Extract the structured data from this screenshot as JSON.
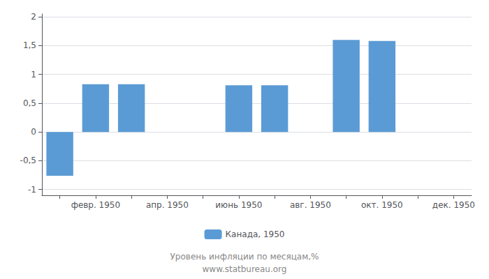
{
  "chart_data": {
    "type": "bar",
    "categories": [
      null,
      "февр. 1950",
      null,
      "апр. 1950",
      null,
      "июнь 1950",
      null,
      "авг. 1950",
      null,
      "окт. 1950",
      null,
      "дек. 1950"
    ],
    "series": [
      {
        "name": "Канада, 1950",
        "color": "#5b9bd5",
        "values": [
          -0.76,
          0.83,
          0.83,
          null,
          null,
          0.81,
          0.81,
          null,
          1.6,
          1.58,
          null,
          null
        ]
      }
    ],
    "ylim": [
      -1.1,
      2.05
    ],
    "yticks": [
      -1,
      {
        "value": -0.5,
        "label": "-0,5"
      },
      0,
      {
        "value": 0.5,
        "label": "0,5"
      },
      1,
      {
        "value": 1.5,
        "label": "1,5"
      },
      2
    ],
    "grid": true,
    "legend": "bottom",
    "annotations": [
      "Уровень инфляции по месяцам,%",
      "www.statbureau.org"
    ]
  }
}
